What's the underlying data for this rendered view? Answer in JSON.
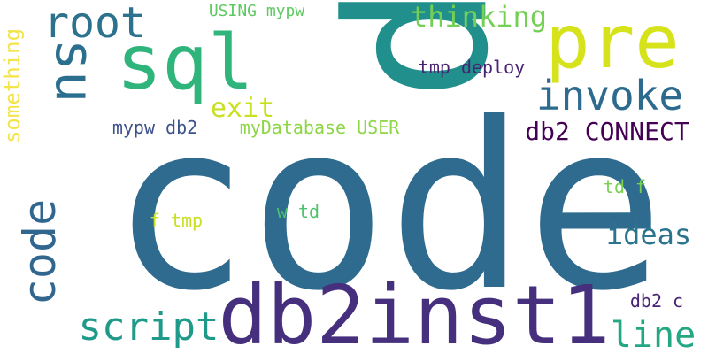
{
  "words": [
    {
      "text": "code",
      "color": "#2e6b8e"
    },
    {
      "text": "p",
      "color": "#21908c"
    },
    {
      "text": "db2inst1",
      "color": "#46307e"
    },
    {
      "text": "sql",
      "color": "#2fb47c"
    },
    {
      "text": "pre",
      "color": "#d6e21a"
    },
    {
      "text": "su",
      "color": "#2b6f8e"
    },
    {
      "text": "root",
      "color": "#2c728e"
    },
    {
      "text": "invoke",
      "color": "#2c6a8e"
    },
    {
      "text": "code",
      "color": "#31668e"
    },
    {
      "text": "script",
      "color": "#1f9a8a"
    },
    {
      "text": "line",
      "color": "#23a883"
    },
    {
      "text": "thinking",
      "color": "#74d055"
    },
    {
      "text": "db2 CONNECT",
      "color": "#440154"
    },
    {
      "text": "ideas",
      "color": "#2b748e"
    },
    {
      "text": "something",
      "color": "#f3e44b"
    },
    {
      "text": "exit",
      "color": "#c9e020"
    },
    {
      "text": "tmp deploy",
      "color": "#482173"
    },
    {
      "text": "mypw db2",
      "color": "#3b528b"
    },
    {
      "text": "myDatabase USER",
      "color": "#8ed645"
    },
    {
      "text": "USING mypw",
      "color": "#5ec962"
    },
    {
      "text": "f tmp",
      "color": "#c8e020"
    },
    {
      "text": "w td",
      "color": "#4ec36b"
    },
    {
      "text": "td f",
      "color": "#7ad151"
    },
    {
      "text": "db2 c",
      "color": "#482475"
    }
  ]
}
